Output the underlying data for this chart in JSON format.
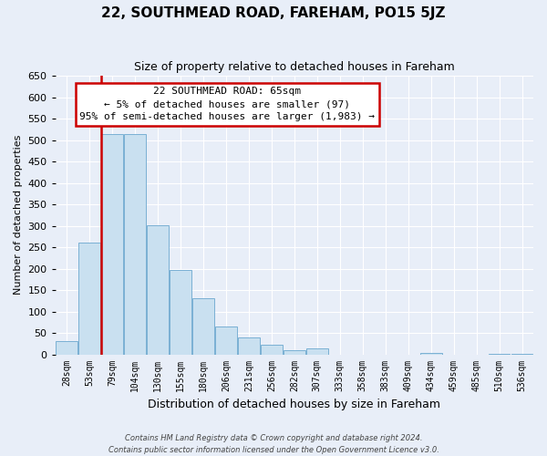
{
  "title": "22, SOUTHMEAD ROAD, FAREHAM, PO15 5JZ",
  "subtitle": "Size of property relative to detached houses in Fareham",
  "xlabel": "Distribution of detached houses by size in Fareham",
  "ylabel": "Number of detached properties",
  "categories": [
    "28sqm",
    "53sqm",
    "79sqm",
    "104sqm",
    "130sqm",
    "155sqm",
    "180sqm",
    "206sqm",
    "231sqm",
    "256sqm",
    "282sqm",
    "307sqm",
    "333sqm",
    "358sqm",
    "383sqm",
    "409sqm",
    "434sqm",
    "459sqm",
    "485sqm",
    "510sqm",
    "536sqm"
  ],
  "values": [
    32,
    260,
    515,
    515,
    302,
    197,
    130,
    65,
    40,
    23,
    10,
    15,
    0,
    0,
    0,
    0,
    3,
    0,
    0,
    2,
    2
  ],
  "bar_color": "#c9e0f0",
  "bar_edge_color": "#7ab0d4",
  "highlight_color": "#cc0000",
  "property_line_x": 1.5,
  "annotation_text_line1": "22 SOUTHMEAD ROAD: 65sqm",
  "annotation_text_line2": "← 5% of detached houses are smaller (97)",
  "annotation_text_line3": "95% of semi-detached houses are larger (1,983) →",
  "annotation_box_facecolor": "#ffffff",
  "annotation_box_edgecolor": "#cc0000",
  "ylim": [
    0,
    650
  ],
  "yticks": [
    0,
    50,
    100,
    150,
    200,
    250,
    300,
    350,
    400,
    450,
    500,
    550,
    600,
    650
  ],
  "fig_bg_color": "#e8eef8",
  "plot_bg_color": "#e8eef8",
  "grid_color": "#ffffff",
  "footer_line1": "Contains HM Land Registry data © Crown copyright and database right 2024.",
  "footer_line2": "Contains public sector information licensed under the Open Government Licence v3.0.",
  "title_fontsize": 11,
  "subtitle_fontsize": 9,
  "xlabel_fontsize": 9,
  "ylabel_fontsize": 8,
  "tick_fontsize": 8,
  "xtick_fontsize": 7,
  "footer_fontsize": 6,
  "annotation_fontsize": 8
}
